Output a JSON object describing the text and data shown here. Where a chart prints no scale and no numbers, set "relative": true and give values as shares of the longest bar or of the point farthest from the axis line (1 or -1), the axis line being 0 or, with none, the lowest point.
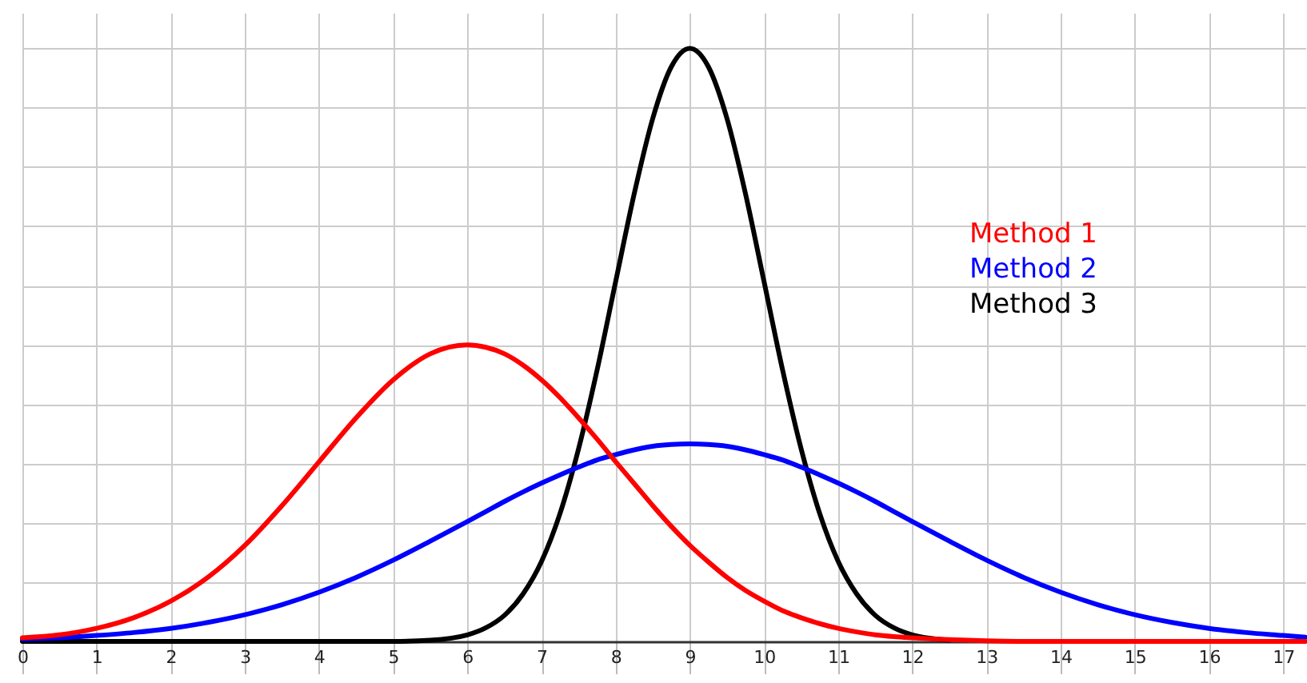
{
  "chart_data": {
    "type": "line",
    "relative": true,
    "grid": true,
    "legend": "top right",
    "marker": "none",
    "line_style": "solid",
    "x": [
      0,
      0.5,
      1,
      1.5,
      2,
      2.5,
      3,
      3.5,
      4,
      4.5,
      5,
      5.5,
      6,
      6.25,
      6.5,
      6.75,
      7,
      7.25,
      7.5,
      7.75,
      8,
      8.25,
      8.5,
      8.75,
      9,
      9.25,
      9.5,
      9.75,
      10,
      10.25,
      10.5,
      10.75,
      11,
      11.25,
      11.5,
      11.75,
      12,
      12.5,
      13,
      13.5,
      14,
      14.5,
      15,
      15.5,
      16,
      16.5,
      17,
      17.3
    ],
    "xlim": [
      0,
      17.3
    ],
    "xticks": [
      0,
      1,
      2,
      3,
      4,
      5,
      6,
      7,
      8,
      9,
      10,
      11,
      12,
      13,
      14,
      15,
      16,
      17
    ],
    "series": [
      {
        "name": "Method 1",
        "color": "#ff0000",
        "values": [
          0.006,
          0.011,
          0.022,
          0.04,
          0.068,
          0.108,
          0.162,
          0.229,
          0.303,
          0.377,
          0.441,
          0.485,
          0.5,
          0.496,
          0.485,
          0.466,
          0.441,
          0.411,
          0.377,
          0.341,
          0.303,
          0.266,
          0.229,
          0.194,
          0.162,
          0.134,
          0.108,
          0.086,
          0.068,
          0.052,
          0.04,
          0.03,
          0.022,
          0.016,
          0.011,
          0.008,
          0.006,
          0.003,
          0.001,
          0,
          0,
          0,
          0,
          0,
          0,
          0,
          0,
          0
        ]
      },
      {
        "name": "Method 2",
        "color": "#0000ff",
        "values": [
          0.004,
          0.006,
          0.01,
          0.015,
          0.022,
          0.032,
          0.045,
          0.062,
          0.083,
          0.108,
          0.137,
          0.169,
          0.202,
          0.219,
          0.236,
          0.252,
          0.267,
          0.281,
          0.294,
          0.306,
          0.315,
          0.323,
          0.329,
          0.332,
          0.333,
          0.332,
          0.329,
          0.323,
          0.315,
          0.306,
          0.294,
          0.281,
          0.267,
          0.252,
          0.236,
          0.219,
          0.202,
          0.169,
          0.137,
          0.108,
          0.083,
          0.062,
          0.045,
          0.032,
          0.022,
          0.015,
          0.01,
          0.007
        ]
      },
      {
        "name": "Method 3",
        "color": "#000000",
        "values": [
          0,
          0,
          0,
          0,
          0,
          0,
          0,
          0,
          0,
          0,
          0,
          0.002,
          0.011,
          0.023,
          0.044,
          0.08,
          0.135,
          0.216,
          0.325,
          0.458,
          0.607,
          0.755,
          0.882,
          0.969,
          1,
          0.969,
          0.882,
          0.755,
          0.607,
          0.458,
          0.325,
          0.216,
          0.135,
          0.08,
          0.044,
          0.023,
          0.011,
          0.002,
          null,
          null,
          null,
          null,
          null,
          null,
          null,
          null,
          null,
          null
        ]
      }
    ]
  }
}
